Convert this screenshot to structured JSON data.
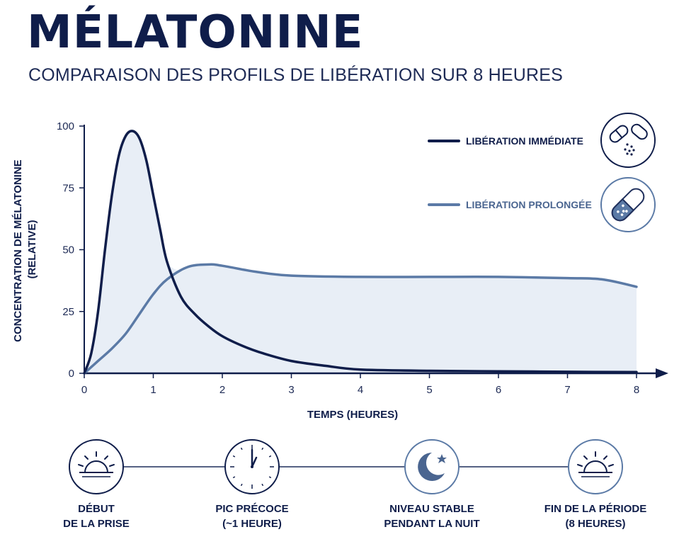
{
  "header": {
    "title": "MÉLATONINE",
    "subtitle": "COMPARAISON DES PROFILS DE LIBÉRATION SUR 8 HEURES"
  },
  "chart_data": {
    "type": "line",
    "xlabel": "TEMPS (HEURES)",
    "ylabel": "CONCENTRATION DE MÉLATONINE (RELATIVE)",
    "ylabel_lines": [
      "CONCENTRATION DE MÉLATONINE",
      "(RELATIVE)"
    ],
    "xlim": [
      0,
      8
    ],
    "ylim": [
      0,
      100
    ],
    "x_ticks": [
      0,
      1,
      2,
      3,
      4,
      5,
      6,
      7,
      8
    ],
    "y_ticks": [
      0,
      25,
      50,
      75,
      100
    ],
    "legend_position": "top-right",
    "series": [
      {
        "name": "LIBÉRATION IMMÉDIATE",
        "color": "#0f1d4a",
        "icon": "capsule-open-icon",
        "x": [
          0,
          0.1,
          0.2,
          0.3,
          0.4,
          0.5,
          0.6,
          0.7,
          0.8,
          0.9,
          1.0,
          1.1,
          1.2,
          1.4,
          1.6,
          1.8,
          2.0,
          2.3,
          2.6,
          3.0,
          3.5,
          4.0,
          5.0,
          6.0,
          7.0,
          8.0
        ],
        "y": [
          0,
          8,
          25,
          50,
          72,
          88,
          96,
          98,
          95,
          86,
          72,
          58,
          45,
          31,
          24,
          19,
          15,
          11,
          8,
          5,
          3,
          1.5,
          1,
          0.8,
          0.6,
          0.5
        ]
      },
      {
        "name": "LIBÉRATION PROLONGÉE",
        "color": "#5b7aa6",
        "icon": "capsule-granules-icon",
        "x": [
          0,
          0.2,
          0.4,
          0.6,
          0.8,
          1.0,
          1.2,
          1.5,
          1.8,
          2.0,
          2.5,
          3.0,
          4.0,
          5.0,
          6.0,
          7.0,
          7.5,
          8.0
        ],
        "y": [
          0,
          5,
          10,
          16,
          24,
          32,
          38,
          43,
          44,
          43.5,
          41,
          39.5,
          39,
          39,
          39,
          38.5,
          38,
          35
        ]
      }
    ]
  },
  "timeline": [
    {
      "label": "DÉBUT\nDE LA PRISE",
      "icon": "sunrise-icon"
    },
    {
      "label": "PIC PRÉCOCE\n(~1 HEURE)",
      "icon": "clock-icon"
    },
    {
      "label": "NIVEAU STABLE\nPENDANT LA NUIT",
      "icon": "moon-star-icon"
    },
    {
      "label": "FIN DE LA PÉRIODE\n(8 HEURES)",
      "icon": "sunset-icon"
    }
  ],
  "colors": {
    "navy": "#0f1d4a",
    "steel_blue": "#5b7aa6",
    "fill": "#e8eef6"
  }
}
